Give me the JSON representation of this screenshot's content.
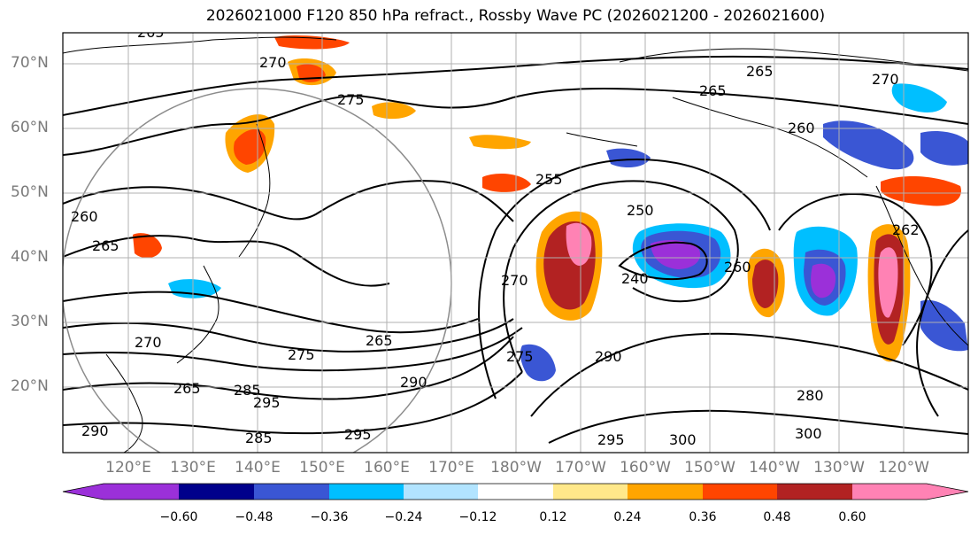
{
  "title": "2026021000 F120 850 hPa refract., Rossby Wave PC (2026021200 - 2026021600)",
  "lat_labels": [
    "70°N",
    "60°N",
    "50°N",
    "40°N",
    "30°N",
    "20°N"
  ],
  "lon_labels": [
    "120°E",
    "130°E",
    "140°E",
    "150°E",
    "160°E",
    "170°E",
    "180°W",
    "170°W",
    "160°W",
    "150°W",
    "140°W",
    "130°W",
    "120°W"
  ],
  "contour_labels": [
    "265",
    "270",
    "275",
    "265",
    "265",
    "270",
    "260",
    "265",
    "260",
    "255",
    "250",
    "240",
    "260",
    "270",
    "275",
    "270",
    "265",
    "275",
    "290",
    "265",
    "285",
    "295",
    "285",
    "295",
    "290",
    "295",
    "280",
    "300",
    "300",
    "290",
    "262"
  ],
  "colorbar": {
    "ticks": [
      "−0.60",
      "−0.48",
      "−0.36",
      "−0.24",
      "−0.12",
      "0.12",
      "0.24",
      "0.36",
      "0.48",
      "0.60"
    ],
    "colors": [
      "#9b30d9",
      "#00008b",
      "#3a56d4",
      "#00bfff",
      "#b2e4ff",
      "#ffffff",
      "#ffe88a",
      "#ffa500",
      "#ff4500",
      "#b22222",
      "#ff82b4"
    ]
  }
}
